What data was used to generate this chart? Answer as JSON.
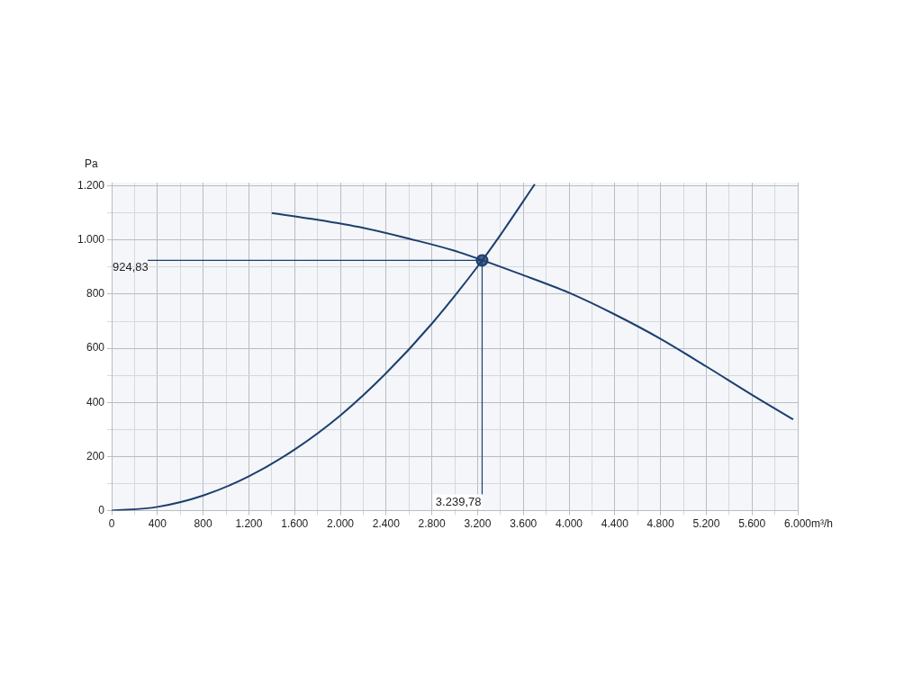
{
  "chart_data": {
    "type": "line",
    "xlabel": "m³/h",
    "ylabel": "Pa",
    "xlim": [
      0,
      6000
    ],
    "ylim": [
      0,
      1212
    ],
    "xticks": [
      0,
      {
        "value": 200,
        "label": null
      },
      400,
      {
        "value": 600,
        "label": null
      },
      800,
      {
        "value": 1000,
        "label": null
      },
      {
        "value": 1200,
        "label": "1.200"
      },
      {
        "value": 1400,
        "label": null
      },
      {
        "value": 1600,
        "label": "1.600"
      },
      {
        "value": 1800,
        "label": null
      },
      {
        "value": 2000,
        "label": "2.000"
      },
      {
        "value": 2200,
        "label": null
      },
      {
        "value": 2400,
        "label": "2.400"
      },
      {
        "value": 2600,
        "label": null
      },
      {
        "value": 2800,
        "label": "2.800"
      },
      {
        "value": 3000,
        "label": null
      },
      {
        "value": 3200,
        "label": "3.200"
      },
      {
        "value": 3400,
        "label": null
      },
      {
        "value": 3600,
        "label": "3.600"
      },
      {
        "value": 3800,
        "label": null
      },
      {
        "value": 4000,
        "label": "4.000"
      },
      {
        "value": 4200,
        "label": null
      },
      {
        "value": 4400,
        "label": "4.400"
      },
      {
        "value": 4600,
        "label": null
      },
      {
        "value": 4800,
        "label": "4.800"
      },
      {
        "value": 5000,
        "label": null
      },
      {
        "value": 5200,
        "label": "5.200"
      },
      {
        "value": 5400,
        "label": null
      },
      {
        "value": 5600,
        "label": "5.600"
      },
      {
        "value": 5800,
        "label": null
      },
      {
        "value": 6000,
        "label": "6.000"
      }
    ],
    "yticks": [
      0,
      {
        "value": 100,
        "label": null
      },
      200,
      {
        "value": 300,
        "label": null
      },
      400,
      {
        "value": 500,
        "label": null
      },
      600,
      {
        "value": 700,
        "label": null
      },
      800,
      {
        "value": 900,
        "label": null
      },
      {
        "value": 1000,
        "label": "1.000"
      },
      {
        "value": 1100,
        "label": null
      },
      {
        "value": 1200,
        "label": "1.200"
      }
    ],
    "grid": true,
    "legend": false,
    "marker": "none",
    "series": [
      {
        "color": "#1d3f6e",
        "x": [
          0,
          400,
          800,
          1200,
          1600,
          2000,
          2400,
          2800,
          3200,
          3400,
          3700
        ],
        "values": [
          0,
          14,
          56,
          127,
          226,
          352,
          508,
          691,
          902,
          1019,
          1206
        ]
      },
      {
        "color": "#1d3f6e",
        "x": [
          1400,
          1800,
          2200,
          2600,
          3000,
          3600,
          4000,
          4400,
          4800,
          5200,
          5600,
          5960
        ],
        "values": [
          1100,
          1075,
          1045,
          1005,
          960,
          870,
          805,
          725,
          635,
          533,
          428,
          337
        ]
      },
      {
        "type": "scatter",
        "color": "#1d3f6e",
        "marker": "circle",
        "x": [
          3239.78
        ],
        "values": [
          924.83
        ]
      }
    ],
    "ref_lines": [
      {
        "axis": "y",
        "value": 924.83,
        "label": "924,83",
        "color": "#1d3f6e"
      },
      {
        "axis": "x",
        "value": 3239.78,
        "label": "3.239,78",
        "color": "#1d3f6e"
      }
    ]
  }
}
